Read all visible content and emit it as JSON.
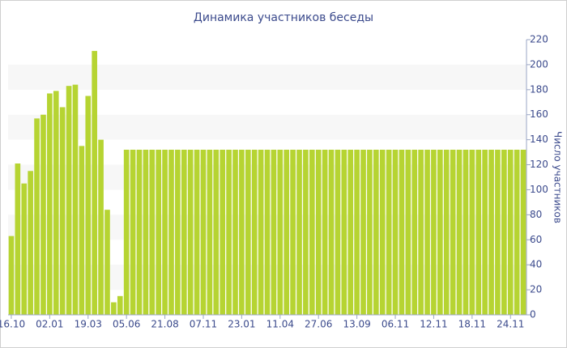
{
  "chart_data": {
    "type": "bar",
    "title": "Динамика участников беседы",
    "y_label": "Число участников",
    "color": "#b6d432",
    "categories": [
      "16.10",
      null,
      null,
      null,
      null,
      null,
      "02.01",
      null,
      null,
      null,
      null,
      null,
      "19.03",
      null,
      null,
      null,
      null,
      null,
      "05.06",
      null,
      null,
      null,
      null,
      null,
      "21.08",
      null,
      null,
      null,
      null,
      null,
      "07.11",
      null,
      null,
      null,
      null,
      null,
      "23.01",
      null,
      null,
      null,
      null,
      null,
      "11.04",
      null,
      null,
      null,
      null,
      null,
      "27.06",
      null,
      null,
      null,
      null,
      null,
      "13.09",
      null,
      null,
      null,
      null,
      null,
      "06.11",
      null,
      null,
      null,
      null,
      null,
      "12.11",
      null,
      null,
      null,
      null,
      null,
      "18.11",
      null,
      null,
      null,
      null,
      null,
      "24.11",
      null,
      null
    ],
    "values": [
      63,
      121,
      105,
      115,
      157,
      160,
      177,
      179,
      166,
      183,
      184,
      135,
      175,
      211,
      140,
      84,
      10,
      15,
      132,
      132,
      132,
      132,
      132,
      132,
      132,
      132,
      132,
      132,
      132,
      132,
      132,
      132,
      132,
      132,
      132,
      132,
      132,
      132,
      132,
      132,
      132,
      132,
      132,
      132,
      132,
      132,
      132,
      132,
      132,
      132,
      132,
      132,
      132,
      132,
      132,
      132,
      132,
      132,
      132,
      132,
      132,
      132,
      132,
      132,
      132,
      132,
      132,
      132,
      132,
      132,
      132,
      132,
      132,
      132,
      132,
      132,
      132,
      132,
      132,
      132,
      132
    ],
    "ylim": [
      0,
      220
    ],
    "yticks": [
      0,
      20,
      40,
      60,
      80,
      100,
      120,
      140,
      160,
      180,
      200,
      220
    ],
    "y_axis_side": "right",
    "striped": true
  }
}
